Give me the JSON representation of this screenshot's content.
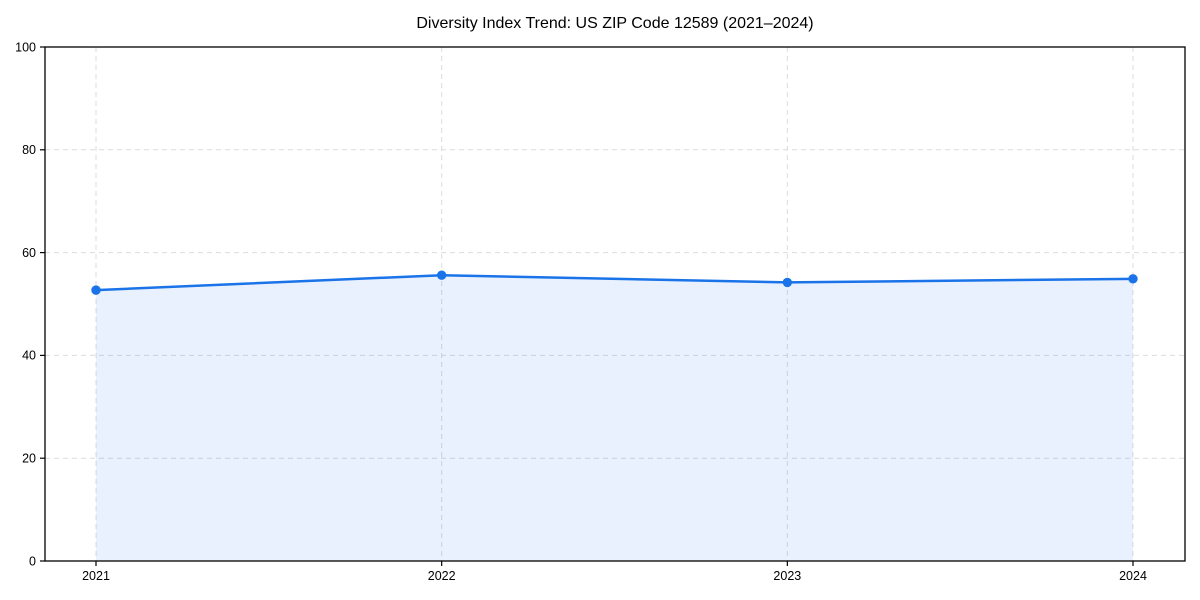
{
  "figure": {
    "background": "#ffffff"
  },
  "chart_data": {
    "type": "area",
    "title": "Diversity Index Trend: US ZIP Code 12589 (2021–2024)",
    "categories": [
      "2021",
      "2022",
      "2023",
      "2024"
    ],
    "series": [
      {
        "name": "Diversity Index",
        "values": [
          52.7,
          55.6,
          54.2,
          54.9
        ]
      }
    ],
    "xlabel": "",
    "ylabel": "",
    "ylim": [
      0,
      100
    ],
    "yticks": [
      0,
      20,
      40,
      60,
      80,
      100
    ],
    "grid": "dashed",
    "legend_position": "none",
    "marker": "circle",
    "colors": {
      "line": "#1a73e8",
      "marker": "#1a73e8",
      "fill": "rgba(26,115,232,0.10)",
      "gridline": "#dcdcdc",
      "axis": "#000000",
      "title_text": "#000000",
      "tick_text": "#000000"
    }
  }
}
